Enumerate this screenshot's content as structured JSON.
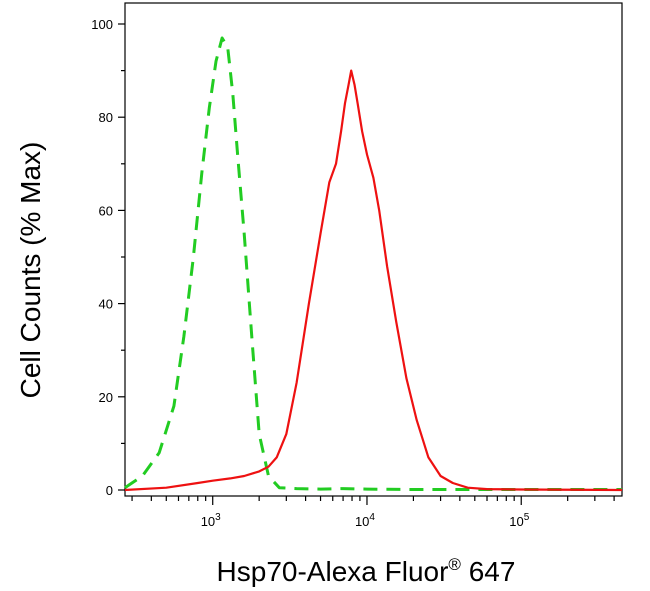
{
  "chart_data": {
    "type": "line",
    "title": "",
    "xlabel": {
      "main": "Hsp70-Alexa Fluor",
      "sup": "®",
      "tail": " 647"
    },
    "ylabel": "Cell Counts (% Max)",
    "x_scale": "log",
    "xlim": [
      270,
      450000
    ],
    "ylim": [
      0,
      100
    ],
    "grid": false,
    "legend": "none",
    "y_ticks": [
      {
        "value": 0,
        "label": "0"
      },
      {
        "value": 20,
        "label": "20"
      },
      {
        "value": 40,
        "label": "40"
      },
      {
        "value": 60,
        "label": "60"
      },
      {
        "value": 80,
        "label": "80"
      },
      {
        "value": 100,
        "label": "100"
      }
    ],
    "x_ticks": [
      {
        "value": 1000,
        "base": "10",
        "exp": "3"
      },
      {
        "value": 10000,
        "base": "10",
        "exp": "4"
      },
      {
        "value": 100000,
        "base": "10",
        "exp": "5"
      }
    ],
    "series": [
      {
        "color": "#22cc22",
        "style": "dashed",
        "x": [
          270,
          350,
          450,
          560,
          650,
          750,
          850,
          950,
          1050,
          1150,
          1250,
          1350,
          1450,
          1600,
          1800,
          2000,
          2300,
          2700,
          3500,
          5000,
          7000,
          10000,
          20000,
          50000,
          100000,
          450000
        ],
        "y": [
          0.5,
          3,
          8,
          18,
          33,
          50,
          68,
          82,
          92,
          97,
          95,
          85,
          72,
          55,
          32,
          12,
          3,
          0.5,
          0.3,
          0.2,
          0.3,
          0.2,
          0.1,
          0.1,
          0.1,
          0.1
        ]
      },
      {
        "color": "#ee1111",
        "style": "solid",
        "x": [
          270,
          500,
          800,
          1000,
          1300,
          1600,
          2000,
          2300,
          2600,
          3000,
          3500,
          4200,
          5000,
          5700,
          6300,
          6800,
          7200,
          7600,
          7900,
          8300,
          8700,
          9300,
          10000,
          11000,
          12000,
          13500,
          15500,
          18000,
          21000,
          25000,
          30000,
          36000,
          45000,
          60000,
          100000,
          450000
        ],
        "y": [
          0,
          0.5,
          1.5,
          2,
          2.5,
          3,
          4,
          5,
          7,
          12,
          23,
          40,
          55,
          66,
          70,
          77,
          83,
          87,
          90,
          87,
          83,
          77,
          72,
          67,
          60,
          48,
          36,
          24,
          15,
          7,
          3,
          1.5,
          0.5,
          0.2,
          0.1,
          0
        ]
      }
    ]
  }
}
